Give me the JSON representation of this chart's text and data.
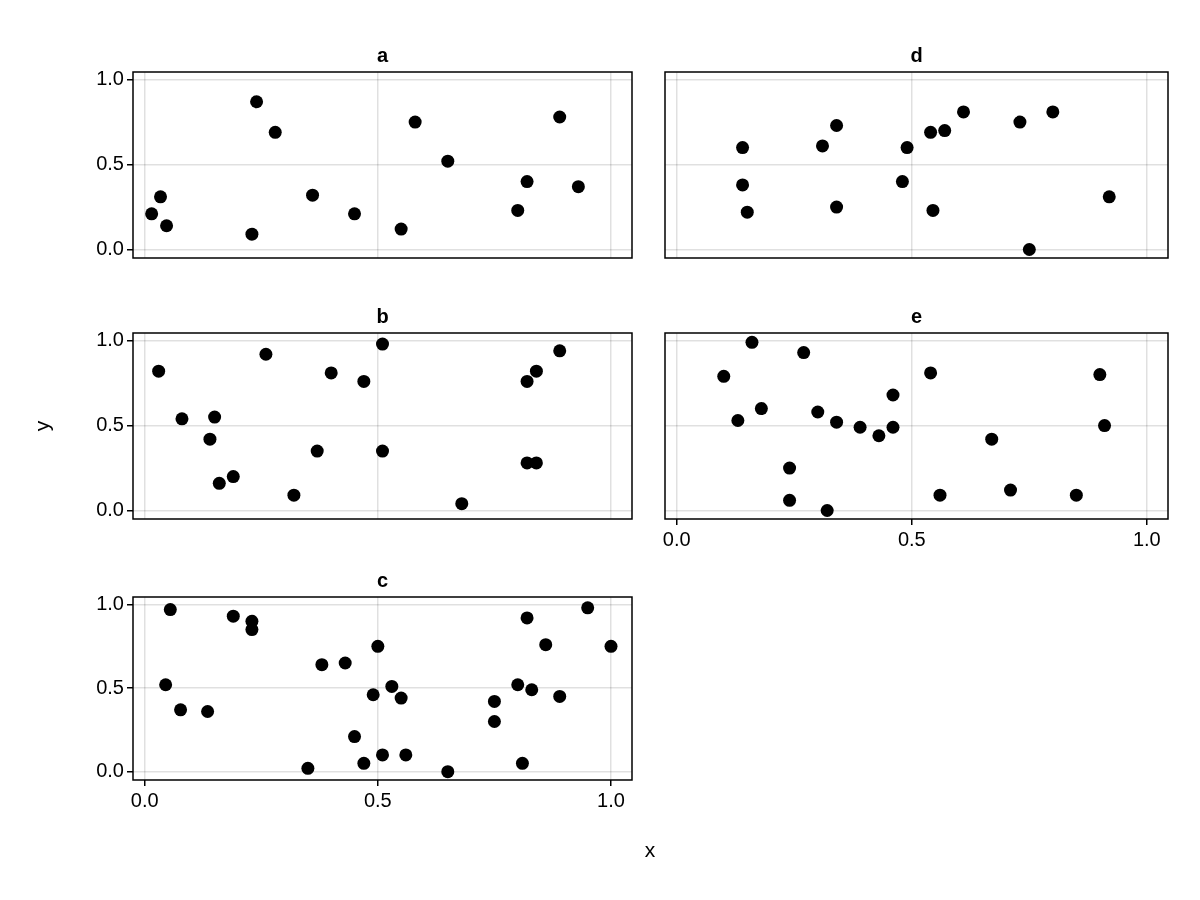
{
  "chart_data": [
    {
      "type": "scatter",
      "title": "a",
      "marker": "circle",
      "grid": true,
      "tick_labels": "y",
      "xlim": [
        -0.025,
        1.045
      ],
      "ylim": [
        -0.05,
        1.045
      ],
      "xticks": [
        {
          "value": 0,
          "label": null
        },
        {
          "value": 0.5,
          "label": null
        },
        {
          "value": 1,
          "label": null
        }
      ],
      "yticks": [
        {
          "value": 0,
          "label": "0.0"
        },
        {
          "value": 0.5,
          "label": "0.5"
        },
        {
          "value": 1,
          "label": "1.0"
        }
      ],
      "series": [
        {
          "color": "#000000",
          "x": [
            0.015,
            0.034,
            0.047,
            0.23,
            0.24,
            0.28,
            0.36,
            0.45,
            0.55,
            0.58,
            0.65,
            0.8,
            0.82,
            0.89,
            0.93
          ],
          "values": [
            0.21,
            0.31,
            0.14,
            0.09,
            0.87,
            0.69,
            0.32,
            0.21,
            0.12,
            0.75,
            0.52,
            0.23,
            0.4,
            0.78,
            0.37
          ]
        }
      ]
    },
    {
      "type": "scatter",
      "title": "d",
      "marker": "circle",
      "grid": true,
      "tick_labels": false,
      "xlim": [
        -0.025,
        1.045
      ],
      "ylim": [
        -0.05,
        1.045
      ],
      "xticks": [
        {
          "value": 0,
          "label": null
        },
        {
          "value": 0.5,
          "label": null
        },
        {
          "value": 1,
          "label": null
        }
      ],
      "yticks": [
        {
          "value": 0,
          "label": null
        },
        {
          "value": 0.5,
          "label": null
        },
        {
          "value": 1,
          "label": null
        }
      ],
      "series": [
        {
          "color": "#000000",
          "x": [
            0.14,
            0.14,
            0.15,
            0.31,
            0.34,
            0.34,
            0.48,
            0.49,
            0.54,
            0.545,
            0.57,
            0.61,
            0.73,
            0.75,
            0.8,
            0.92
          ],
          "values": [
            0.6,
            0.38,
            0.22,
            0.61,
            0.73,
            0.25,
            0.4,
            0.6,
            0.69,
            0.23,
            0.7,
            0.81,
            0.75,
            0.0,
            0.81,
            0.31
          ]
        }
      ]
    },
    {
      "type": "scatter",
      "title": "b",
      "ylabel": "y",
      "marker": "circle",
      "grid": true,
      "tick_labels": "y",
      "xlim": [
        -0.025,
        1.045
      ],
      "ylim": [
        -0.05,
        1.045
      ],
      "xticks": [
        {
          "value": 0,
          "label": null
        },
        {
          "value": 0.5,
          "label": null
        },
        {
          "value": 1,
          "label": null
        }
      ],
      "yticks": [
        {
          "value": 0,
          "label": "0.0"
        },
        {
          "value": 0.5,
          "label": "0.5"
        },
        {
          "value": 1,
          "label": "1.0"
        }
      ],
      "series": [
        {
          "color": "#000000",
          "x": [
            0.03,
            0.08,
            0.14,
            0.15,
            0.16,
            0.19,
            0.26,
            0.32,
            0.37,
            0.4,
            0.47,
            0.51,
            0.51,
            0.68,
            0.82,
            0.82,
            0.84,
            0.84,
            0.89
          ],
          "values": [
            0.82,
            0.54,
            0.42,
            0.55,
            0.16,
            0.2,
            0.92,
            0.09,
            0.35,
            0.81,
            0.76,
            0.98,
            0.35,
            0.04,
            0.76,
            0.28,
            0.28,
            0.82,
            0.94
          ]
        }
      ]
    },
    {
      "type": "scatter",
      "title": "e",
      "marker": "circle",
      "grid": true,
      "tick_labels": "x",
      "xlim": [
        -0.025,
        1.045
      ],
      "ylim": [
        -0.05,
        1.045
      ],
      "xticks": [
        {
          "value": 0,
          "label": "0.0"
        },
        {
          "value": 0.5,
          "label": "0.5"
        },
        {
          "value": 1,
          "label": "1.0"
        }
      ],
      "yticks": [
        {
          "value": 0,
          "label": null
        },
        {
          "value": 0.5,
          "label": null
        },
        {
          "value": 1,
          "label": null
        }
      ],
      "series": [
        {
          "color": "#000000",
          "x": [
            0.1,
            0.16,
            0.27,
            0.13,
            0.18,
            0.24,
            0.24,
            0.3,
            0.32,
            0.34,
            0.39,
            0.43,
            0.46,
            0.46,
            0.54,
            0.56,
            0.67,
            0.71,
            0.85,
            0.9,
            0.91
          ],
          "values": [
            0.79,
            0.99,
            0.93,
            0.53,
            0.6,
            0.25,
            0.06,
            0.58,
            0.0,
            0.52,
            0.49,
            0.44,
            0.68,
            0.49,
            0.81,
            0.09,
            0.42,
            0.12,
            0.09,
            0.8,
            0.5
          ]
        }
      ]
    },
    {
      "type": "scatter",
      "title": "c",
      "xlabel": "x",
      "marker": "circle",
      "grid": true,
      "xlim": [
        -0.025,
        1.045
      ],
      "ylim": [
        -0.05,
        1.045
      ],
      "xticks": [
        {
          "value": 0,
          "label": "0.0"
        },
        {
          "value": 0.5,
          "label": "0.5"
        },
        {
          "value": 1,
          "label": "1.0"
        }
      ],
      "yticks": [
        {
          "value": 0,
          "label": "0.0"
        },
        {
          "value": 0.5,
          "label": "0.5"
        },
        {
          "value": 1,
          "label": "1.0"
        }
      ],
      "series": [
        {
          "color": "#000000",
          "x": [
            0.055,
            0.045,
            0.077,
            0.135,
            0.19,
            0.23,
            0.23,
            0.35,
            0.38,
            0.43,
            0.45,
            0.47,
            0.49,
            0.5,
            0.51,
            0.53,
            0.55,
            0.56,
            0.65,
            0.75,
            0.75,
            0.8,
            0.81,
            0.82,
            0.83,
            0.86,
            0.89,
            0.95,
            1.0
          ],
          "values": [
            0.97,
            0.52,
            0.37,
            0.36,
            0.93,
            0.9,
            0.85,
            0.02,
            0.64,
            0.65,
            0.21,
            0.05,
            0.46,
            0.75,
            0.1,
            0.51,
            0.44,
            0.1,
            0.0,
            0.3,
            0.42,
            0.52,
            0.05,
            0.92,
            0.49,
            0.76,
            0.45,
            0.98,
            0.75
          ]
        }
      ]
    }
  ]
}
